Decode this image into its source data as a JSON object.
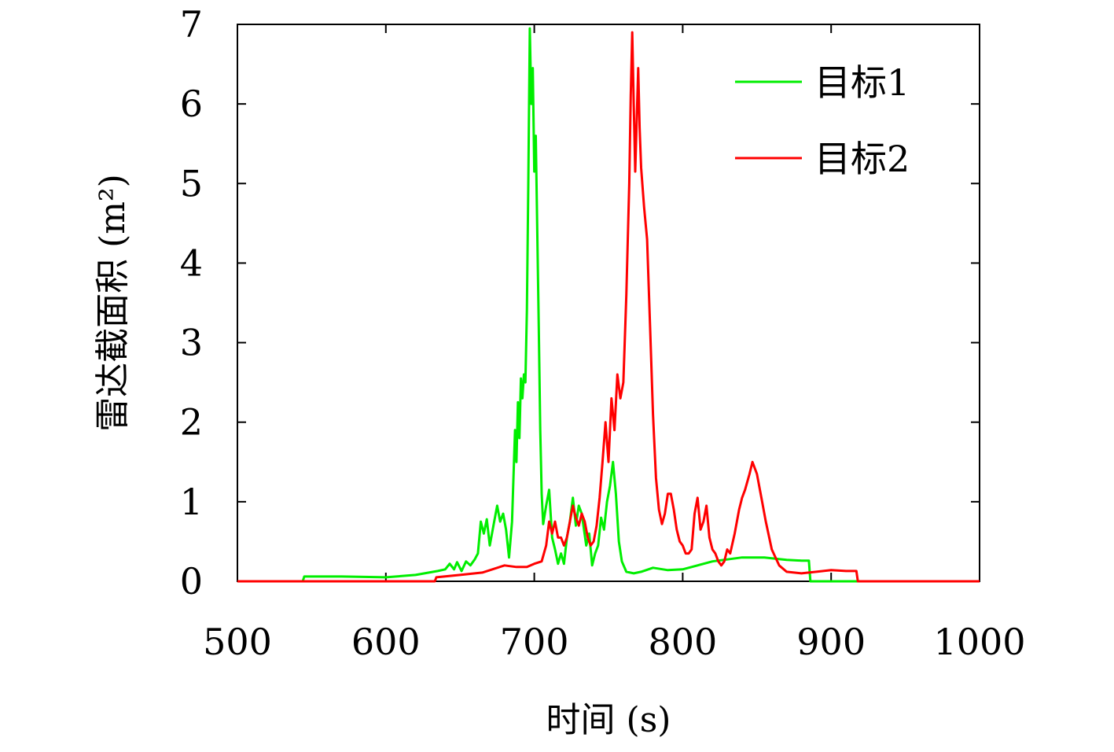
{
  "chart_data": {
    "type": "line",
    "title": "",
    "xlabel": "时间 (s)",
    "ylabel": "雷达截面积 (m²)",
    "xlim": [
      500,
      1000
    ],
    "ylim": [
      0,
      7
    ],
    "xticks": [
      "500",
      "600",
      "700",
      "800",
      "900",
      "1000"
    ],
    "yticks": [
      "0",
      "1",
      "2",
      "3",
      "4",
      "5",
      "6",
      "7"
    ],
    "grid": false,
    "legend_position": "top-right",
    "series": [
      {
        "name": "目标1",
        "color": "#00ee00",
        "points": [
          [
            500,
            0
          ],
          [
            544,
            0
          ],
          [
            545,
            0.06
          ],
          [
            570,
            0.06
          ],
          [
            600,
            0.05
          ],
          [
            620,
            0.08
          ],
          [
            635,
            0.13
          ],
          [
            640,
            0.15
          ],
          [
            643,
            0.22
          ],
          [
            646,
            0.15
          ],
          [
            648,
            0.24
          ],
          [
            651,
            0.13
          ],
          [
            654,
            0.25
          ],
          [
            657,
            0.2
          ],
          [
            660,
            0.28
          ],
          [
            662,
            0.35
          ],
          [
            664,
            0.75
          ],
          [
            666,
            0.6
          ],
          [
            668,
            0.78
          ],
          [
            670,
            0.45
          ],
          [
            673,
            0.75
          ],
          [
            675,
            0.95
          ],
          [
            677,
            0.75
          ],
          [
            679,
            0.85
          ],
          [
            681,
            0.65
          ],
          [
            683,
            0.3
          ],
          [
            685,
            0.75
          ],
          [
            687,
            1.9
          ],
          [
            688,
            1.5
          ],
          [
            689,
            2.25
          ],
          [
            690,
            1.8
          ],
          [
            691,
            2.55
          ],
          [
            692,
            2.3
          ],
          [
            693,
            2.6
          ],
          [
            694,
            2.5
          ],
          [
            695,
            3.4
          ],
          [
            696,
            5.0
          ],
          [
            697,
            6.95
          ],
          [
            698,
            6.0
          ],
          [
            699,
            6.45
          ],
          [
            700,
            5.15
          ],
          [
            701,
            5.6
          ],
          [
            702,
            4.4
          ],
          [
            703,
            3.2
          ],
          [
            704,
            1.9
          ],
          [
            705,
            1.1
          ],
          [
            706,
            0.72
          ],
          [
            708,
            0.95
          ],
          [
            710,
            1.15
          ],
          [
            712,
            0.55
          ],
          [
            714,
            0.4
          ],
          [
            716,
            0.22
          ],
          [
            718,
            0.35
          ],
          [
            720,
            0.22
          ],
          [
            722,
            0.55
          ],
          [
            724,
            0.75
          ],
          [
            726,
            1.05
          ],
          [
            728,
            0.7
          ],
          [
            730,
            0.95
          ],
          [
            732,
            0.85
          ],
          [
            735,
            0.45
          ],
          [
            737,
            0.6
          ],
          [
            739,
            0.2
          ],
          [
            741,
            0.35
          ],
          [
            743,
            0.45
          ],
          [
            745,
            0.8
          ],
          [
            747,
            0.65
          ],
          [
            749,
            1.0
          ],
          [
            751,
            1.2
          ],
          [
            753,
            1.5
          ],
          [
            755,
            1.1
          ],
          [
            757,
            0.5
          ],
          [
            759,
            0.25
          ],
          [
            762,
            0.12
          ],
          [
            767,
            0.1
          ],
          [
            772,
            0.12
          ],
          [
            780,
            0.17
          ],
          [
            790,
            0.14
          ],
          [
            800,
            0.15
          ],
          [
            820,
            0.25
          ],
          [
            840,
            0.3
          ],
          [
            855,
            0.3
          ],
          [
            870,
            0.27
          ],
          [
            880,
            0.26
          ],
          [
            885,
            0.26
          ],
          [
            886,
            0
          ],
          [
            1000,
            0
          ]
        ]
      },
      {
        "name": "目标2",
        "color": "#ff0000",
        "points": [
          [
            500,
            0
          ],
          [
            633,
            0
          ],
          [
            634,
            0.05
          ],
          [
            650,
            0.08
          ],
          [
            665,
            0.11
          ],
          [
            680,
            0.2
          ],
          [
            688,
            0.18
          ],
          [
            695,
            0.18
          ],
          [
            700,
            0.22
          ],
          [
            705,
            0.25
          ],
          [
            708,
            0.45
          ],
          [
            710,
            0.75
          ],
          [
            712,
            0.6
          ],
          [
            714,
            0.75
          ],
          [
            716,
            0.55
          ],
          [
            718,
            0.55
          ],
          [
            720,
            0.45
          ],
          [
            722,
            0.55
          ],
          [
            724,
            0.75
          ],
          [
            726,
            0.95
          ],
          [
            728,
            0.8
          ],
          [
            730,
            0.7
          ],
          [
            732,
            0.85
          ],
          [
            734,
            0.75
          ],
          [
            736,
            0.55
          ],
          [
            738,
            0.45
          ],
          [
            740,
            0.5
          ],
          [
            742,
            0.7
          ],
          [
            744,
            1.05
          ],
          [
            746,
            1.5
          ],
          [
            748,
            2.0
          ],
          [
            750,
            1.5
          ],
          [
            752,
            2.3
          ],
          [
            754,
            1.9
          ],
          [
            756,
            2.6
          ],
          [
            758,
            2.3
          ],
          [
            760,
            2.5
          ],
          [
            762,
            3.6
          ],
          [
            764,
            5.0
          ],
          [
            765,
            6.1
          ],
          [
            766,
            6.9
          ],
          [
            767,
            6.0
          ],
          [
            768,
            5.15
          ],
          [
            769,
            5.8
          ],
          [
            770,
            6.45
          ],
          [
            771,
            5.7
          ],
          [
            772,
            5.2
          ],
          [
            774,
            4.7
          ],
          [
            776,
            4.3
          ],
          [
            778,
            3.2
          ],
          [
            780,
            2.1
          ],
          [
            782,
            1.3
          ],
          [
            784,
            0.9
          ],
          [
            786,
            0.72
          ],
          [
            788,
            0.85
          ],
          [
            790,
            1.1
          ],
          [
            792,
            1.1
          ],
          [
            794,
            0.9
          ],
          [
            796,
            0.65
          ],
          [
            798,
            0.5
          ],
          [
            800,
            0.45
          ],
          [
            802,
            0.35
          ],
          [
            804,
            0.35
          ],
          [
            806,
            0.4
          ],
          [
            808,
            0.85
          ],
          [
            810,
            1.05
          ],
          [
            812,
            0.65
          ],
          [
            814,
            0.75
          ],
          [
            816,
            0.95
          ],
          [
            818,
            0.55
          ],
          [
            820,
            0.4
          ],
          [
            822,
            0.35
          ],
          [
            824,
            0.25
          ],
          [
            826,
            0.2
          ],
          [
            828,
            0.25
          ],
          [
            830,
            0.4
          ],
          [
            832,
            0.35
          ],
          [
            835,
            0.6
          ],
          [
            838,
            0.9
          ],
          [
            840,
            1.05
          ],
          [
            842,
            1.15
          ],
          [
            845,
            1.35
          ],
          [
            847,
            1.5
          ],
          [
            850,
            1.35
          ],
          [
            853,
            1.05
          ],
          [
            856,
            0.75
          ],
          [
            860,
            0.4
          ],
          [
            865,
            0.2
          ],
          [
            870,
            0.12
          ],
          [
            880,
            0.1
          ],
          [
            890,
            0.12
          ],
          [
            900,
            0.14
          ],
          [
            910,
            0.13
          ],
          [
            917,
            0.13
          ],
          [
            918,
            0
          ],
          [
            1000,
            0
          ]
        ]
      }
    ]
  }
}
